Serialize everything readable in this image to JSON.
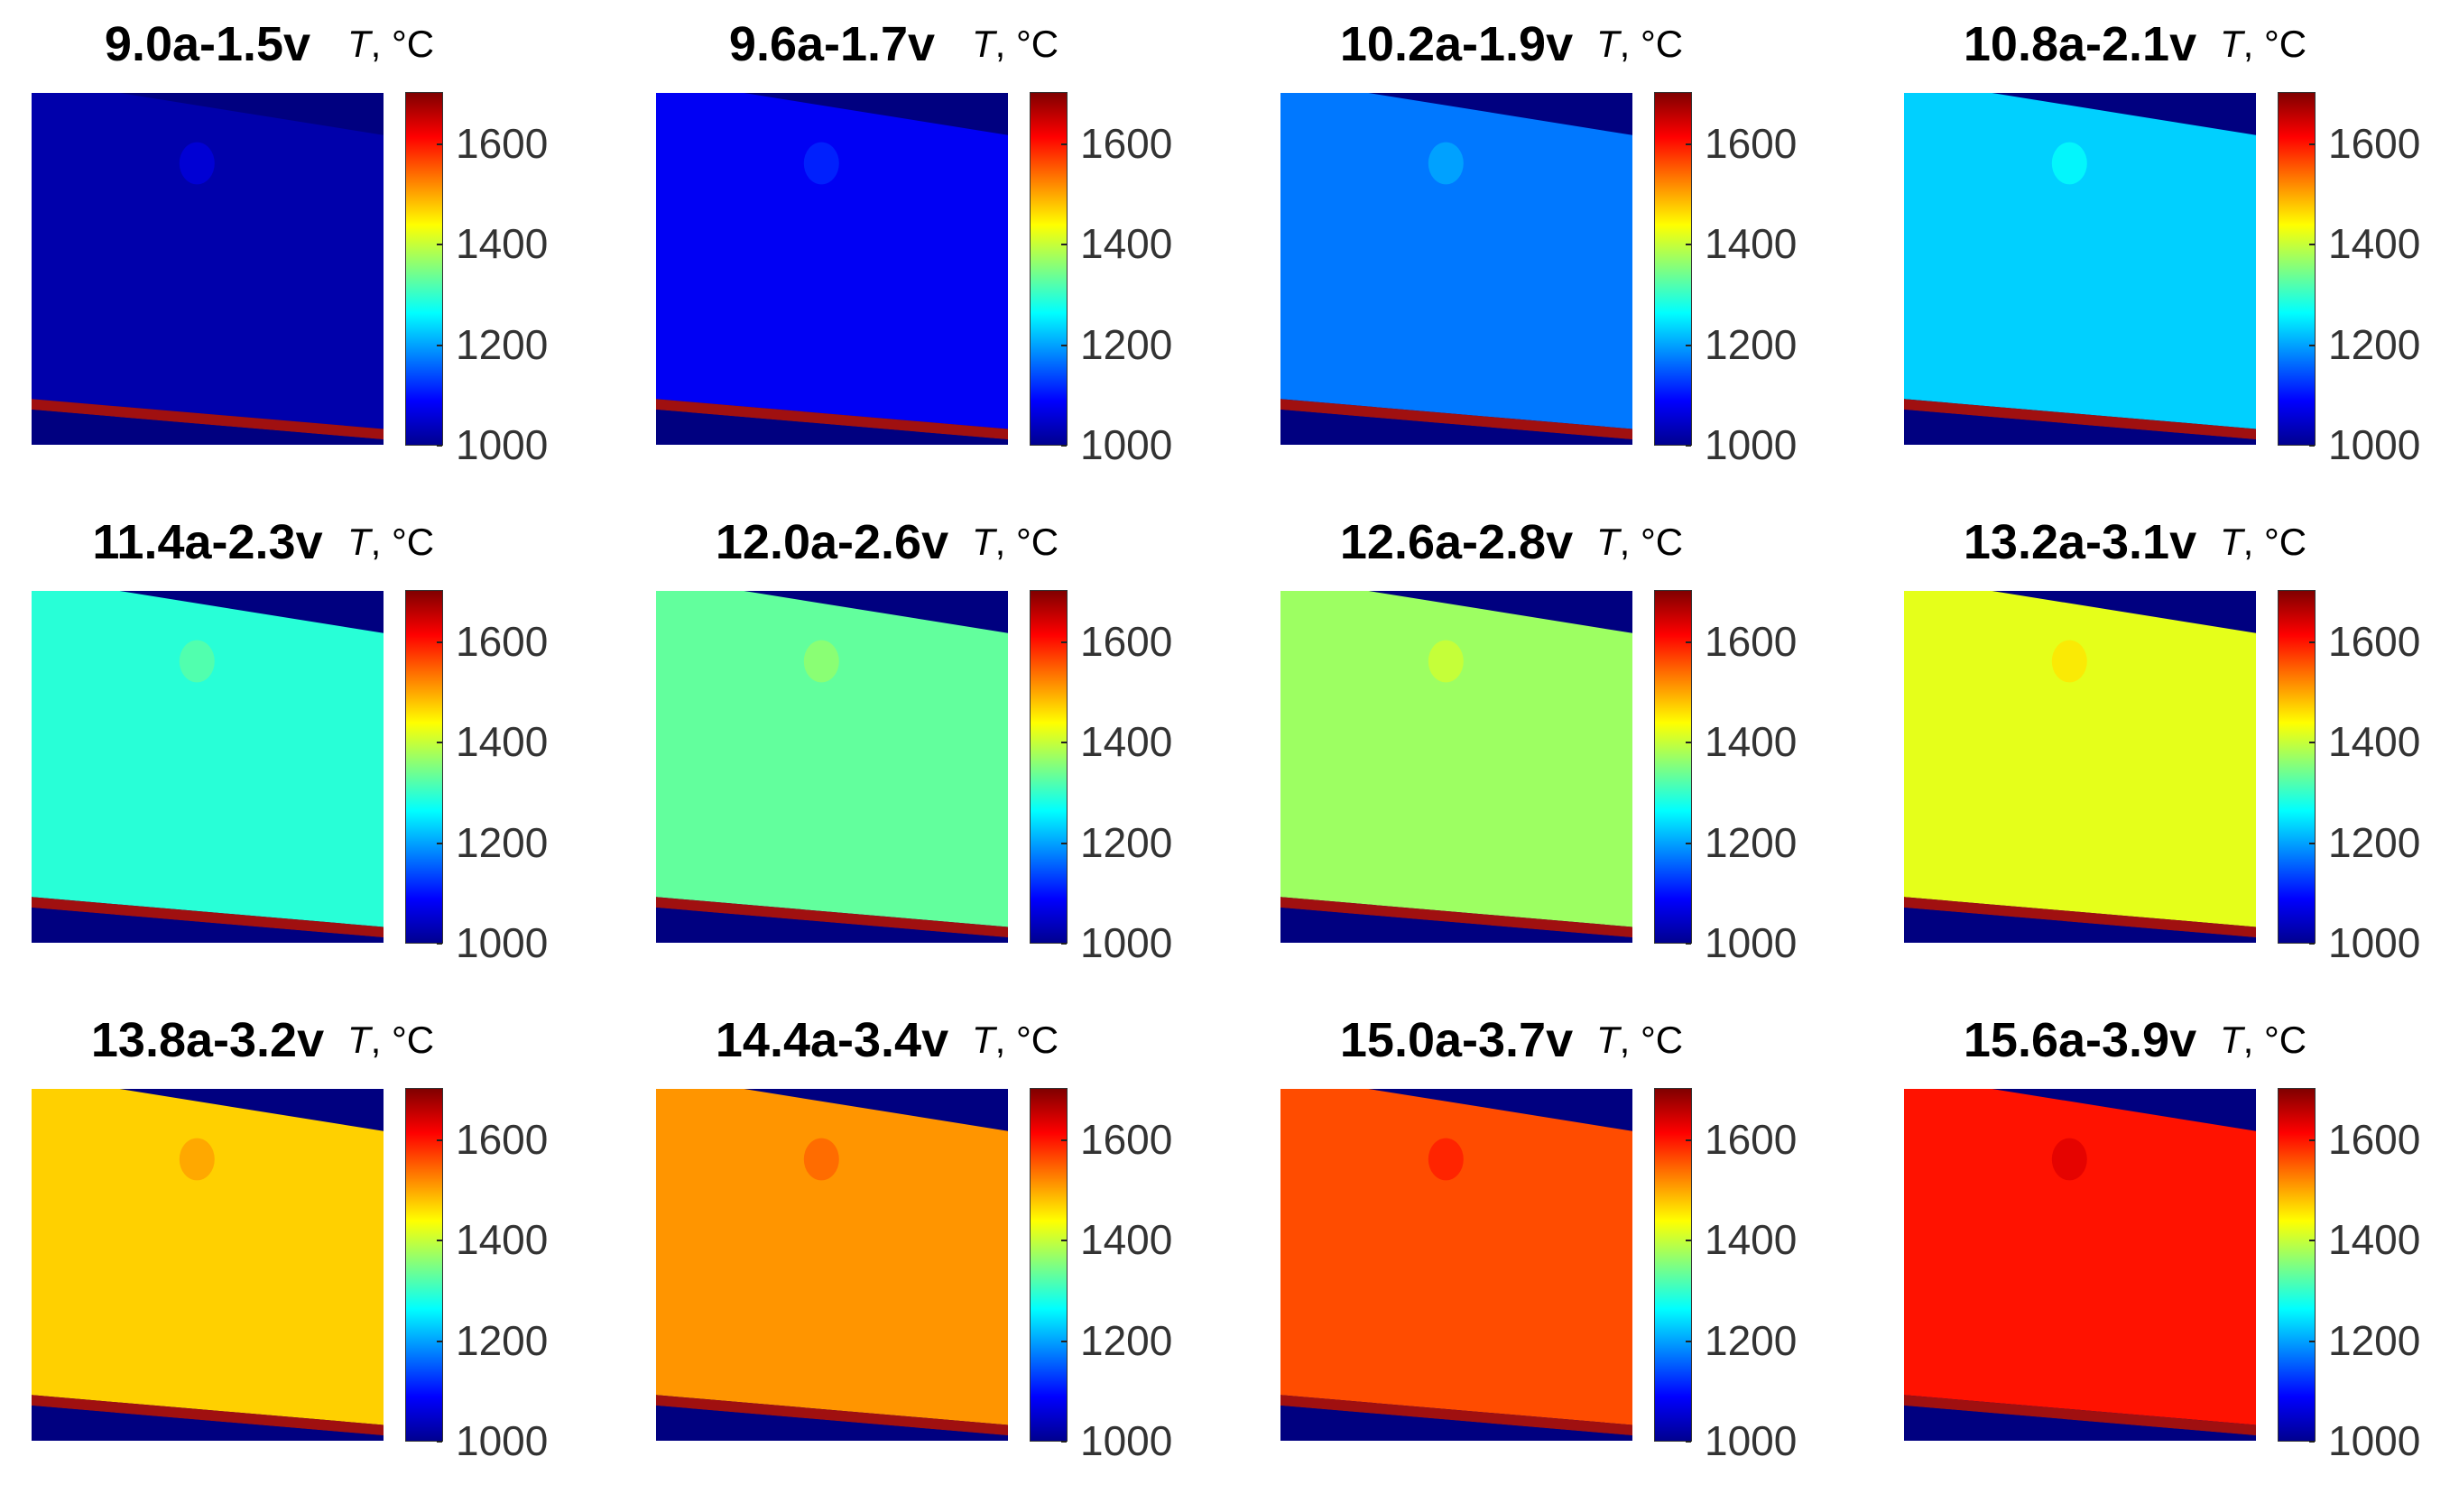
{
  "chart_data": {
    "type": "heatmap",
    "colorbar": {
      "label_italic": "T",
      "label_rest": ", °C",
      "ticks": [
        1000,
        1200,
        1400,
        1600
      ],
      "range": [
        1000,
        1700
      ],
      "colormap": "jet"
    },
    "panels": [
      {
        "title": "9.0a-1.5v",
        "mean_temperature": 1030
      },
      {
        "title": "9.6a-1.7v",
        "mean_temperature": 1080
      },
      {
        "title": "10.2a-1.9v",
        "mean_temperature": 1170
      },
      {
        "title": "10.8a-2.1v",
        "mean_temperature": 1230
      },
      {
        "title": "11.4a-2.3v",
        "mean_temperature": 1290
      },
      {
        "title": "12.0a-2.6v",
        "mean_temperature": 1330
      },
      {
        "title": "12.6a-2.8v",
        "mean_temperature": 1370
      },
      {
        "title": "13.2a-3.1v",
        "mean_temperature": 1420
      },
      {
        "title": "13.8a-3.2v",
        "mean_temperature": 1470
      },
      {
        "title": "14.4a-3.4v",
        "mean_temperature": 1510
      },
      {
        "title": "15.0a-3.7v",
        "mean_temperature": 1560
      },
      {
        "title": "15.6a-3.9v",
        "mean_temperature": 1600
      }
    ]
  }
}
